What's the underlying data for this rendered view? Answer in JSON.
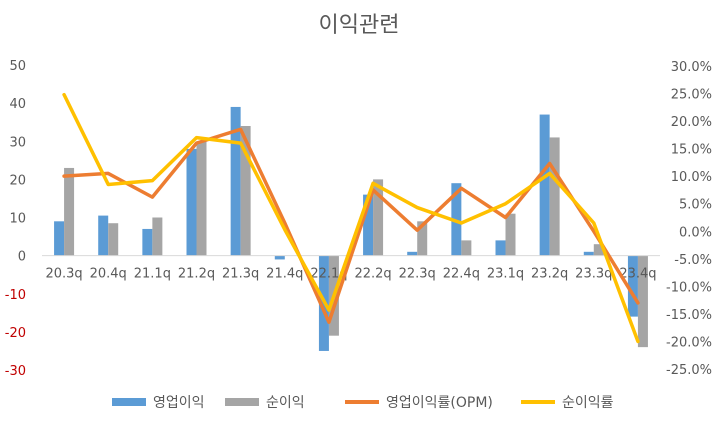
{
  "chart_data": {
    "type": "bar",
    "title": "이익관련",
    "categories": [
      "20.3q",
      "20.4q",
      "21.1q",
      "21.2q",
      "21.3q",
      "21.4q",
      "22.1q",
      "22.2q",
      "22.3q",
      "22.4q",
      "23.1q",
      "23.2q",
      "23.3q",
      "23.4q"
    ],
    "left_axis": {
      "ylim": [
        -30,
        50
      ],
      "ticks": [
        50,
        40,
        30,
        20,
        10,
        0,
        -10,
        -20,
        -30
      ],
      "tick_labels": [
        "50",
        "40",
        "30",
        "20",
        "10",
        "0",
        "-10",
        "-20",
        "-30"
      ],
      "negative_tick_color": "#c00000"
    },
    "right_axis": {
      "ylim": [
        -25,
        30
      ],
      "ticks": [
        30,
        25,
        20,
        15,
        10,
        5,
        0,
        -5,
        -10,
        -15,
        -20,
        -25
      ],
      "tick_labels": [
        "30.0%",
        "25.0%",
        "20.0%",
        "15.0%",
        "10.0%",
        "5.0%",
        "0.0%",
        "-5.0%",
        "-10.0%",
        "-15.0%",
        "-20.0%",
        "-25.0%"
      ]
    },
    "series": [
      {
        "name": "영업이익",
        "kind": "bar",
        "axis": "left",
        "color": "#5b9bd5",
        "values": [
          9,
          10.5,
          7,
          28,
          39,
          -1,
          -25,
          16,
          1,
          19,
          4,
          37,
          1,
          -16
        ]
      },
      {
        "name": "순이익",
        "kind": "bar",
        "axis": "left",
        "color": "#a5a5a5",
        "values": [
          23,
          8.5,
          10,
          30,
          34,
          0,
          -21,
          20,
          9,
          4,
          11,
          31,
          3,
          -24
        ]
      },
      {
        "name": "영업이익률(OPM)",
        "kind": "line",
        "axis": "right",
        "color": "#ed7d31",
        "values": [
          10,
          10.5,
          6.2,
          16,
          18.5,
          1.5,
          -16.5,
          7.5,
          0.2,
          7.8,
          2.5,
          12.3,
          0,
          -13
        ]
      },
      {
        "name": "순이익률",
        "kind": "line",
        "axis": "right",
        "color": "#ffc000",
        "values": [
          24.8,
          8.5,
          9.2,
          17,
          16,
          0.3,
          -14.3,
          8.7,
          4.3,
          1.5,
          5,
          10.5,
          1.5,
          -20
        ]
      }
    ],
    "legend_position": "bottom",
    "grid": false
  }
}
